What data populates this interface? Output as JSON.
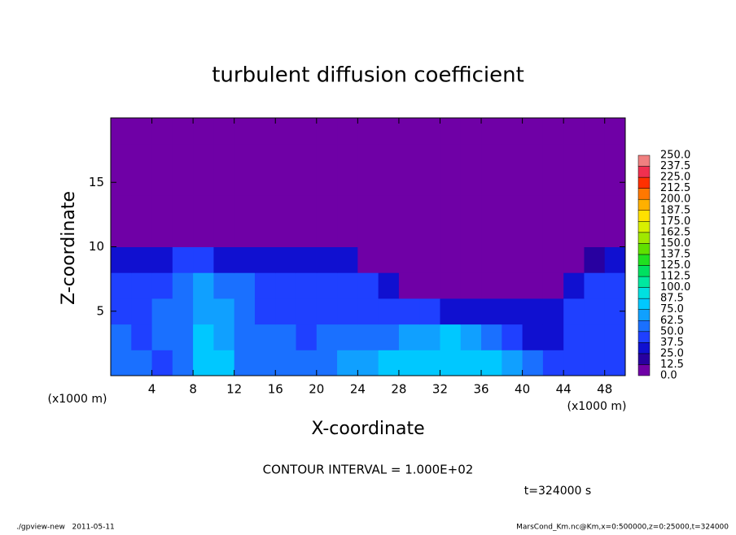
{
  "chart_data": {
    "type": "heatmap",
    "title": "turbulent diffusion coefficient",
    "xlabel": "X-coordinate",
    "ylabel": "Z-coordinate",
    "x_unit": "(x1000 m)",
    "y_unit": "(x1000 m)",
    "xlim": [
      0,
      50
    ],
    "ylim": [
      0,
      20
    ],
    "xticks": [
      4,
      8,
      12,
      16,
      20,
      24,
      28,
      32,
      36,
      40,
      44,
      48
    ],
    "yticks": [
      5,
      10,
      15
    ],
    "x_edges": [
      0,
      2,
      4,
      6,
      8,
      10,
      12,
      14,
      16,
      18,
      20,
      22,
      24,
      26,
      28,
      30,
      32,
      34,
      36,
      38,
      40,
      42,
      44,
      46,
      48,
      50
    ],
    "y_edges": [
      0,
      2,
      4,
      6,
      8,
      10,
      12,
      14,
      16,
      18,
      20
    ],
    "z": [
      [
        55,
        50,
        45,
        55,
        85,
        80,
        60,
        50,
        55,
        50,
        60,
        65,
        70,
        75,
        80,
        75,
        80,
        85,
        75,
        70,
        60,
        45,
        40,
        45,
        40
      ],
      [
        50,
        45,
        50,
        55,
        75,
        70,
        55,
        50,
        50,
        45,
        50,
        55,
        55,
        60,
        65,
        70,
        75,
        70,
        60,
        45,
        35,
        30,
        40,
        40,
        45
      ],
      [
        45,
        45,
        50,
        50,
        70,
        65,
        50,
        45,
        45,
        45,
        45,
        45,
        45,
        40,
        40,
        45,
        35,
        30,
        30,
        30,
        25,
        25,
        40,
        45,
        45
      ],
      [
        45,
        40,
        45,
        50,
        65,
        60,
        50,
        45,
        40,
        40,
        45,
        40,
        40,
        30,
        12,
        5,
        5,
        5,
        5,
        5,
        0,
        0,
        25,
        40,
        45
      ],
      [
        30,
        35,
        35,
        40,
        40,
        35,
        30,
        30,
        30,
        30,
        30,
        25,
        5,
        0,
        0,
        0,
        0,
        0,
        0,
        0,
        0,
        0,
        0,
        20,
        30
      ],
      [
        0,
        0,
        0,
        0,
        0,
        0,
        0,
        0,
        0,
        0,
        0,
        0,
        0,
        0,
        0,
        0,
        0,
        0,
        0,
        0,
        0,
        0,
        0,
        0,
        0
      ],
      [
        0,
        0,
        0,
        0,
        0,
        0,
        0,
        0,
        0,
        0,
        0,
        0,
        0,
        0,
        0,
        0,
        0,
        0,
        0,
        0,
        0,
        0,
        0,
        0,
        0
      ],
      [
        0,
        0,
        0,
        0,
        0,
        0,
        0,
        0,
        0,
        0,
        0,
        0,
        0,
        0,
        0,
        0,
        0,
        0,
        0,
        0,
        0,
        0,
        0,
        0,
        0
      ],
      [
        0,
        0,
        0,
        0,
        0,
        0,
        0,
        0,
        0,
        0,
        0,
        0,
        0,
        0,
        0,
        0,
        0,
        0,
        0,
        0,
        0,
        0,
        0,
        0,
        0
      ],
      [
        0,
        0,
        0,
        0,
        0,
        0,
        0,
        0,
        0,
        0,
        0,
        0,
        0,
        0,
        0,
        0,
        0,
        0,
        0,
        0,
        0,
        0,
        0,
        0,
        0
      ]
    ],
    "levels": [
      {
        "value": 0,
        "label": "0.0"
      },
      {
        "value": 12.5,
        "label": "12.5"
      },
      {
        "value": 25,
        "label": "25.0"
      },
      {
        "value": 37.5,
        "label": "37.5"
      },
      {
        "value": 50,
        "label": "50.0"
      },
      {
        "value": 62.5,
        "label": "62.5"
      },
      {
        "value": 75,
        "label": "75.0"
      },
      {
        "value": 87.5,
        "label": "87.5"
      },
      {
        "value": 100,
        "label": "100.0"
      },
      {
        "value": 112.5,
        "label": "112.5"
      },
      {
        "value": 125,
        "label": "125.0"
      },
      {
        "value": 137.5,
        "label": "137.5"
      },
      {
        "value": 150,
        "label": "150.0"
      },
      {
        "value": 162.5,
        "label": "162.5"
      },
      {
        "value": 175,
        "label": "175.0"
      },
      {
        "value": 187.5,
        "label": "187.5"
      },
      {
        "value": 200,
        "label": "200.0"
      },
      {
        "value": 212.5,
        "label": "212.5"
      },
      {
        "value": 225,
        "label": "225.0"
      },
      {
        "value": 237.5,
        "label": "237.5"
      },
      {
        "value": 250,
        "label": "250.0"
      }
    ],
    "colors": [
      "#6f00a6",
      "#2800a0",
      "#1010d0",
      "#1f40ff",
      "#1a70ff",
      "#10a0ff",
      "#00c8ff",
      "#00e0e0",
      "#00e8a0",
      "#00e060",
      "#20e020",
      "#60e000",
      "#a0e800",
      "#d8f000",
      "#ffe000",
      "#ffb000",
      "#ff7800",
      "#ff3000",
      "#f03050",
      "#f08080"
    ],
    "contour_note": "CONTOUR INTERVAL = 1.000E+02",
    "time_note": "t=324000 s",
    "footer_left": "./gpview-new   2011-05-11",
    "footer_right": "MarsCond_Km.nc@Km,x=0:500000,z=0:25000,t=324000"
  }
}
